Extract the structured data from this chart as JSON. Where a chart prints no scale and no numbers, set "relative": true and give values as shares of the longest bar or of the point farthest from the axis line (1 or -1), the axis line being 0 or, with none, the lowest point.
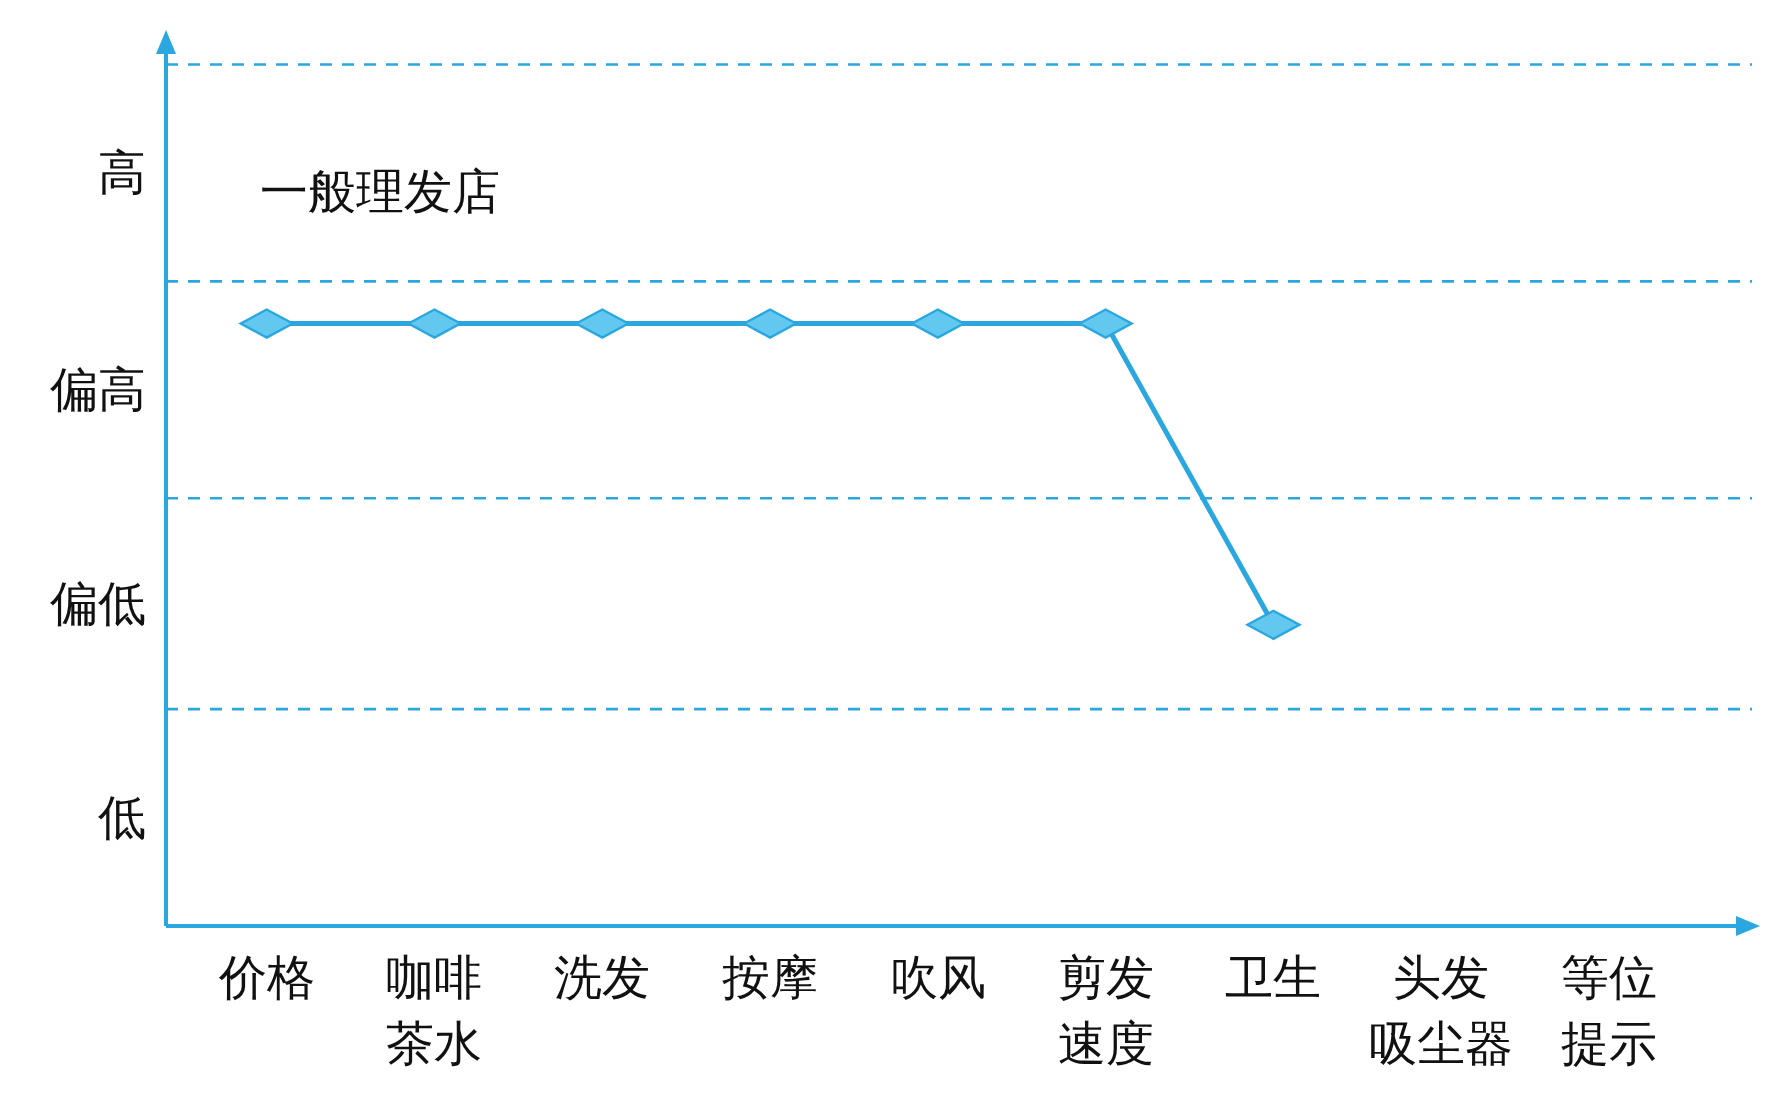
{
  "chart_data": {
    "type": "line",
    "relative": true,
    "categories": [
      "价格",
      "咖啡茶水",
      "洗发",
      "按摩",
      "吹风",
      "剪发速度",
      "卫生",
      "头发吸尘器",
      "等位提示"
    ],
    "series": [
      {
        "name": "一般理发店",
        "color": "#2aa7df",
        "values": [
          1,
          1,
          1,
          1,
          1,
          1,
          0.5,
          null,
          null
        ]
      }
    ],
    "annotations": [
      "低",
      "偏低",
      "偏高",
      "高"
    ],
    "ref_lines": [
      {
        "axis": "y",
        "value": 0.36,
        "color": "#2aa7df",
        "line_style": "dashed"
      },
      {
        "axis": "y",
        "value": 0.71,
        "color": "#2aa7df",
        "line_style": "dashed"
      },
      {
        "axis": "y",
        "value": 1.07,
        "color": "#2aa7df",
        "line_style": "dashed"
      },
      {
        "axis": "y",
        "value": 1.43,
        "color": "#2aa7df",
        "line_style": "dashed"
      }
    ],
    "marker": "diamond",
    "line_style": "solid"
  }
}
